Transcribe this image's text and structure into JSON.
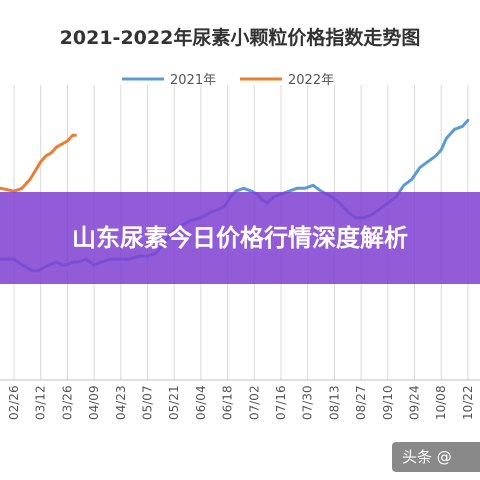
{
  "chart_data": {
    "type": "line",
    "title": "2021-2022年尿素小颗粒价格指数走势图",
    "xlabel": "",
    "ylabel": "",
    "x": [
      "02/26",
      "03/12",
      "03/26",
      "04/09",
      "04/23",
      "05/07",
      "05/21",
      "06/04",
      "06/18",
      "07/02",
      "07/16",
      "07/30",
      "08/13",
      "08/27",
      "09/10",
      "09/24",
      "10/08",
      "10/22"
    ],
    "ylim": [
      0,
      100
    ],
    "grid": true,
    "legend": "top",
    "series": [
      {
        "name": "2021年",
        "color": "#5B9BD5",
        "points": [
          [
            -0.9,
            40
          ],
          [
            -0.5,
            41
          ],
          [
            0,
            41
          ],
          [
            0.3,
            39
          ],
          [
            0.7,
            37
          ],
          [
            0.9,
            37
          ],
          [
            1.1,
            38
          ],
          [
            1.3,
            39
          ],
          [
            1.6,
            40
          ],
          [
            1.8,
            39
          ],
          [
            2.0,
            39
          ],
          [
            2.2,
            40
          ],
          [
            2.4,
            40
          ],
          [
            2.7,
            41
          ],
          [
            3.0,
            39
          ],
          [
            3.3,
            40
          ],
          [
            3.6,
            41
          ],
          [
            4.0,
            41
          ],
          [
            4.3,
            41
          ],
          [
            4.7,
            42
          ],
          [
            5.0,
            42
          ],
          [
            5.3,
            43
          ],
          [
            5.6,
            46
          ],
          [
            5.9,
            50
          ],
          [
            6.2,
            52
          ],
          [
            6.6,
            54
          ],
          [
            7.0,
            55
          ],
          [
            7.4,
            57
          ],
          [
            7.7,
            58
          ],
          [
            7.9,
            59
          ],
          [
            8.1,
            62
          ],
          [
            8.3,
            64
          ],
          [
            8.6,
            65
          ],
          [
            8.9,
            64
          ],
          [
            9.1,
            63
          ],
          [
            9.3,
            61
          ],
          [
            9.5,
            60
          ],
          [
            9.7,
            62
          ],
          [
            10.0,
            63
          ],
          [
            10.3,
            64
          ],
          [
            10.6,
            65
          ],
          [
            10.9,
            65
          ],
          [
            11.2,
            66
          ],
          [
            11.5,
            64
          ],
          [
            11.9,
            62
          ],
          [
            12.2,
            60
          ],
          [
            12.5,
            57
          ],
          [
            12.8,
            55
          ],
          [
            13.1,
            55
          ],
          [
            13.4,
            56
          ],
          [
            13.7,
            58
          ],
          [
            14.0,
            60
          ],
          [
            14.3,
            62
          ],
          [
            14.6,
            66
          ],
          [
            14.9,
            68
          ],
          [
            15.2,
            72
          ],
          [
            15.5,
            74
          ],
          [
            15.8,
            76
          ],
          [
            16.0,
            78
          ],
          [
            16.2,
            82
          ],
          [
            16.5,
            85
          ],
          [
            16.8,
            86
          ],
          [
            17.0,
            88
          ]
        ]
      },
      {
        "name": "2022年",
        "color": "#ED7D31",
        "points": [
          [
            -0.9,
            66
          ],
          [
            -0.5,
            65
          ],
          [
            0,
            64
          ],
          [
            0.3,
            65
          ],
          [
            0.6,
            68
          ],
          [
            0.8,
            71
          ],
          [
            1.0,
            74
          ],
          [
            1.2,
            76
          ],
          [
            1.4,
            77
          ],
          [
            1.6,
            79
          ],
          [
            1.8,
            80
          ],
          [
            2.0,
            81
          ],
          [
            2.2,
            83
          ],
          [
            2.3,
            83
          ]
        ]
      }
    ]
  },
  "banner": {
    "text": "山东尿素今日价格行情深度解析"
  },
  "watermark": {
    "text": "头条 @"
  }
}
